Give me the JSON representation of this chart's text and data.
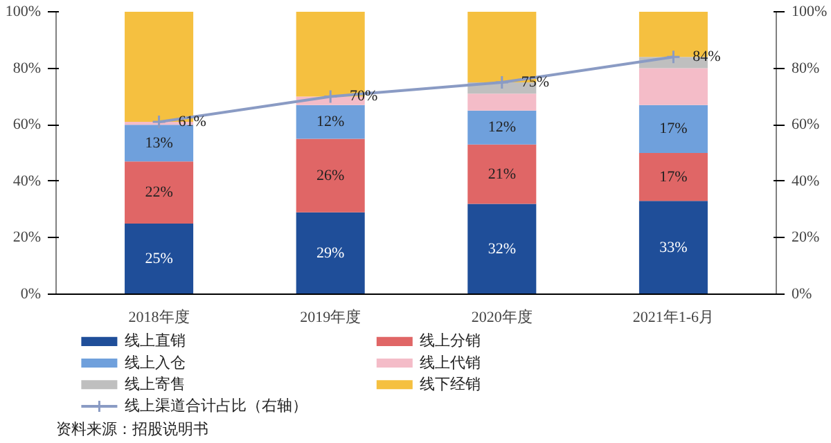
{
  "chart_data": {
    "type": "bar",
    "stacked": true,
    "categories": [
      "2018年度",
      "2019年度",
      "2020年度",
      "2021年1-6月"
    ],
    "series": [
      {
        "name": "线上直销",
        "color": "#1f4e99",
        "values": [
          25,
          29,
          32,
          33
        ],
        "value_labels": [
          "25%",
          "29%",
          "32%",
          "33%"
        ]
      },
      {
        "name": "线上分销",
        "color": "#e06666",
        "values": [
          22,
          26,
          21,
          17
        ],
        "value_labels": [
          "22%",
          "26%",
          "21%",
          "17%"
        ]
      },
      {
        "name": "线上入仓",
        "color": "#6fa0dc",
        "values": [
          13,
          12,
          12,
          17
        ],
        "value_labels": [
          "13%",
          "12%",
          "12%",
          "17%"
        ]
      },
      {
        "name": "线上代销",
        "color": "#f4bcc8",
        "values": [
          1,
          3,
          6,
          13
        ]
      },
      {
        "name": "线上寄售",
        "color": "#bfbfbf",
        "values": [
          0,
          0,
          4,
          4
        ]
      },
      {
        "name": "线下经销",
        "color": "#f5c040",
        "values": [
          39,
          30,
          25,
          16
        ]
      },
      {
        "name": "线上渠道合计占比（右轴）",
        "type": "line",
        "axis": "y2",
        "color": "#8a9bc4",
        "marker": "cross",
        "values": [
          61,
          70,
          75,
          84
        ],
        "value_labels": [
          "61%",
          "70%",
          "75%",
          "84%"
        ]
      }
    ],
    "ylim": [
      0,
      100
    ],
    "yticks": [
      {
        "value": 0,
        "label": "0%"
      },
      {
        "value": 20,
        "label": "20%"
      },
      {
        "value": 40,
        "label": "40%"
      },
      {
        "value": 60,
        "label": "60%"
      },
      {
        "value": 80,
        "label": "80%"
      },
      {
        "value": 100,
        "label": "100%"
      }
    ],
    "y2lim": [
      0,
      100
    ],
    "y2ticks": [
      {
        "value": 0,
        "label": "0%"
      },
      {
        "value": 20,
        "label": "20%"
      },
      {
        "value": 40,
        "label": "40%"
      },
      {
        "value": 60,
        "label": "60%"
      },
      {
        "value": 80,
        "label": "80%"
      },
      {
        "value": 100,
        "label": "100%"
      }
    ],
    "grid": false,
    "legend": "bottom",
    "annotations": [
      "资料来源：招股说明书"
    ]
  }
}
